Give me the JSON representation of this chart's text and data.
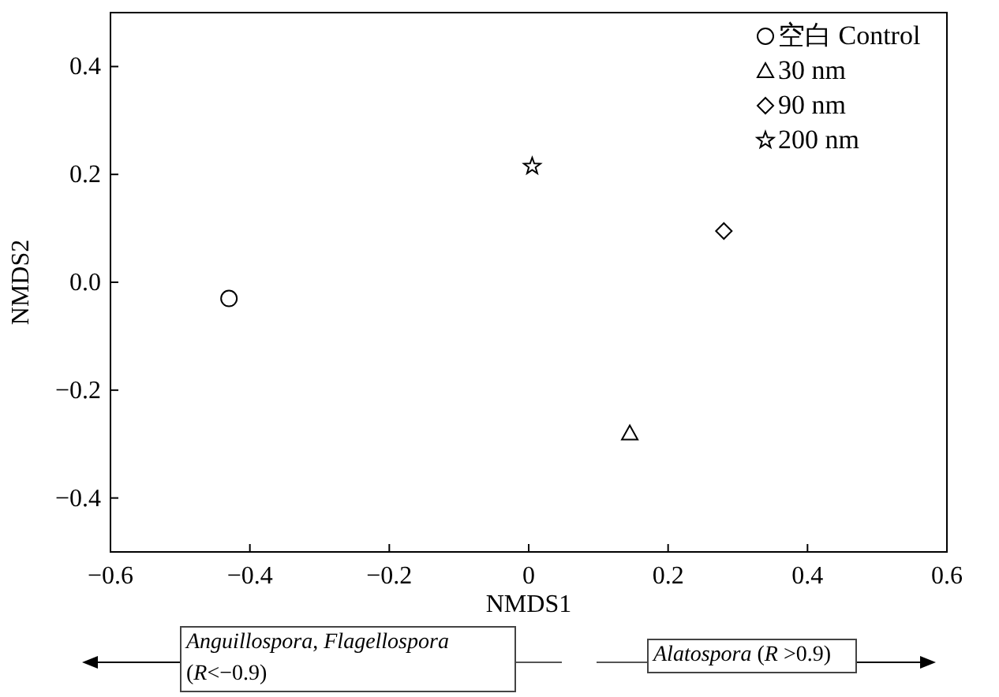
{
  "chart_data": {
    "type": "scatter",
    "xlabel": "NMDS1",
    "ylabel": "NMDS2",
    "xlim": [
      -0.6,
      0.6
    ],
    "ylim": [
      -0.5,
      0.5
    ],
    "xticks": [
      {
        "value": -0.6,
        "label": "−0.6"
      },
      {
        "value": -0.4,
        "label": "−0.4"
      },
      {
        "value": -0.2,
        "label": "−0.2"
      },
      {
        "value": 0,
        "label": "0"
      },
      0.2,
      0.4,
      0.6
    ],
    "yticks": [
      {
        "value": -0.4,
        "label": "−0.4"
      },
      {
        "value": -0.2,
        "label": "−0.2"
      },
      {
        "value": 0,
        "label": "0.0"
      },
      0.2,
      0.4
    ],
    "legend": "top right",
    "grid": false,
    "series": [
      {
        "name": "空白 Control",
        "color": "#000000",
        "marker": "circle",
        "x": [
          -0.43
        ],
        "values": [
          -0.03
        ]
      },
      {
        "name": "30 nm",
        "color": "#000000",
        "marker": "triangle",
        "x": [
          0.145
        ],
        "values": [
          -0.28
        ]
      },
      {
        "name": "90 nm",
        "color": "#000000",
        "marker": "diamond",
        "x": [
          0.28
        ],
        "values": [
          0.095
        ]
      },
      {
        "name": "200 nm",
        "color": "#000000",
        "marker": "star",
        "x": [
          0.005
        ],
        "values": [
          0.215
        ]
      }
    ],
    "annotations": [
      "*Anguillospora*, *Flagellospora* (*R*<−0.9)",
      "*Alatospora* (*R* >0.9)"
    ]
  }
}
